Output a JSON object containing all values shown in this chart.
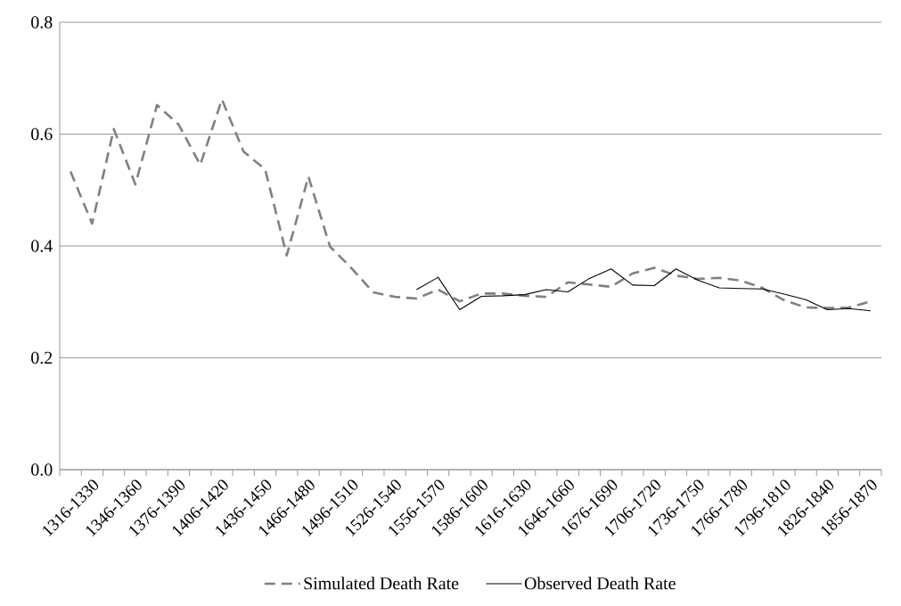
{
  "chart_data": {
    "type": "line",
    "categories": [
      null,
      "1316-1330",
      null,
      "1346-1360",
      null,
      "1376-1390",
      null,
      "1406-1420",
      null,
      "1436-1450",
      null,
      "1466-1480",
      null,
      "1496-1510",
      null,
      "1526-1540",
      null,
      "1556-1570",
      null,
      "1586-1600",
      null,
      "1616-1630",
      null,
      "1646-1660",
      null,
      "1676-1690",
      null,
      "1706-1720",
      null,
      "1736-1750",
      null,
      "1766-1780",
      null,
      "1796-1810",
      null,
      "1826-1840",
      null,
      "1856-1870"
    ],
    "series": [
      {
        "name": "Simulated Death Rate",
        "color": "#808080",
        "line_style": "dashed",
        "values": [
          0.533,
          0.44,
          0.609,
          0.51,
          0.652,
          0.617,
          0.545,
          0.662,
          0.569,
          0.537,
          0.383,
          0.524,
          0.399,
          0.36,
          0.317,
          0.309,
          0.306,
          0.322,
          0.301,
          0.315,
          0.315,
          0.311,
          0.309,
          0.335,
          0.331,
          0.327,
          0.351,
          0.361,
          0.347,
          0.341,
          0.343,
          0.338,
          0.325,
          0.303,
          0.29,
          0.289,
          0.29,
          0.301
        ]
      },
      {
        "name": "Observed Death Rate",
        "color": "#000000",
        "line_style": "solid",
        "values": [
          null,
          null,
          null,
          null,
          null,
          null,
          null,
          null,
          null,
          null,
          null,
          null,
          null,
          null,
          null,
          null,
          0.322,
          0.344,
          0.286,
          0.31,
          0.311,
          0.313,
          0.322,
          0.318,
          0.342,
          0.359,
          0.33,
          0.329,
          0.359,
          0.339,
          0.325,
          0.324,
          0.323,
          0.314,
          0.304,
          0.286,
          0.288,
          0.284
        ]
      }
    ],
    "ylim": [
      0,
      0.8
    ],
    "yticks": [
      {
        "value": 0,
        "label": "0.0"
      },
      0.2,
      0.4,
      0.6,
      0.8
    ],
    "grid": "y",
    "legend": "bottom",
    "marker": "none"
  }
}
